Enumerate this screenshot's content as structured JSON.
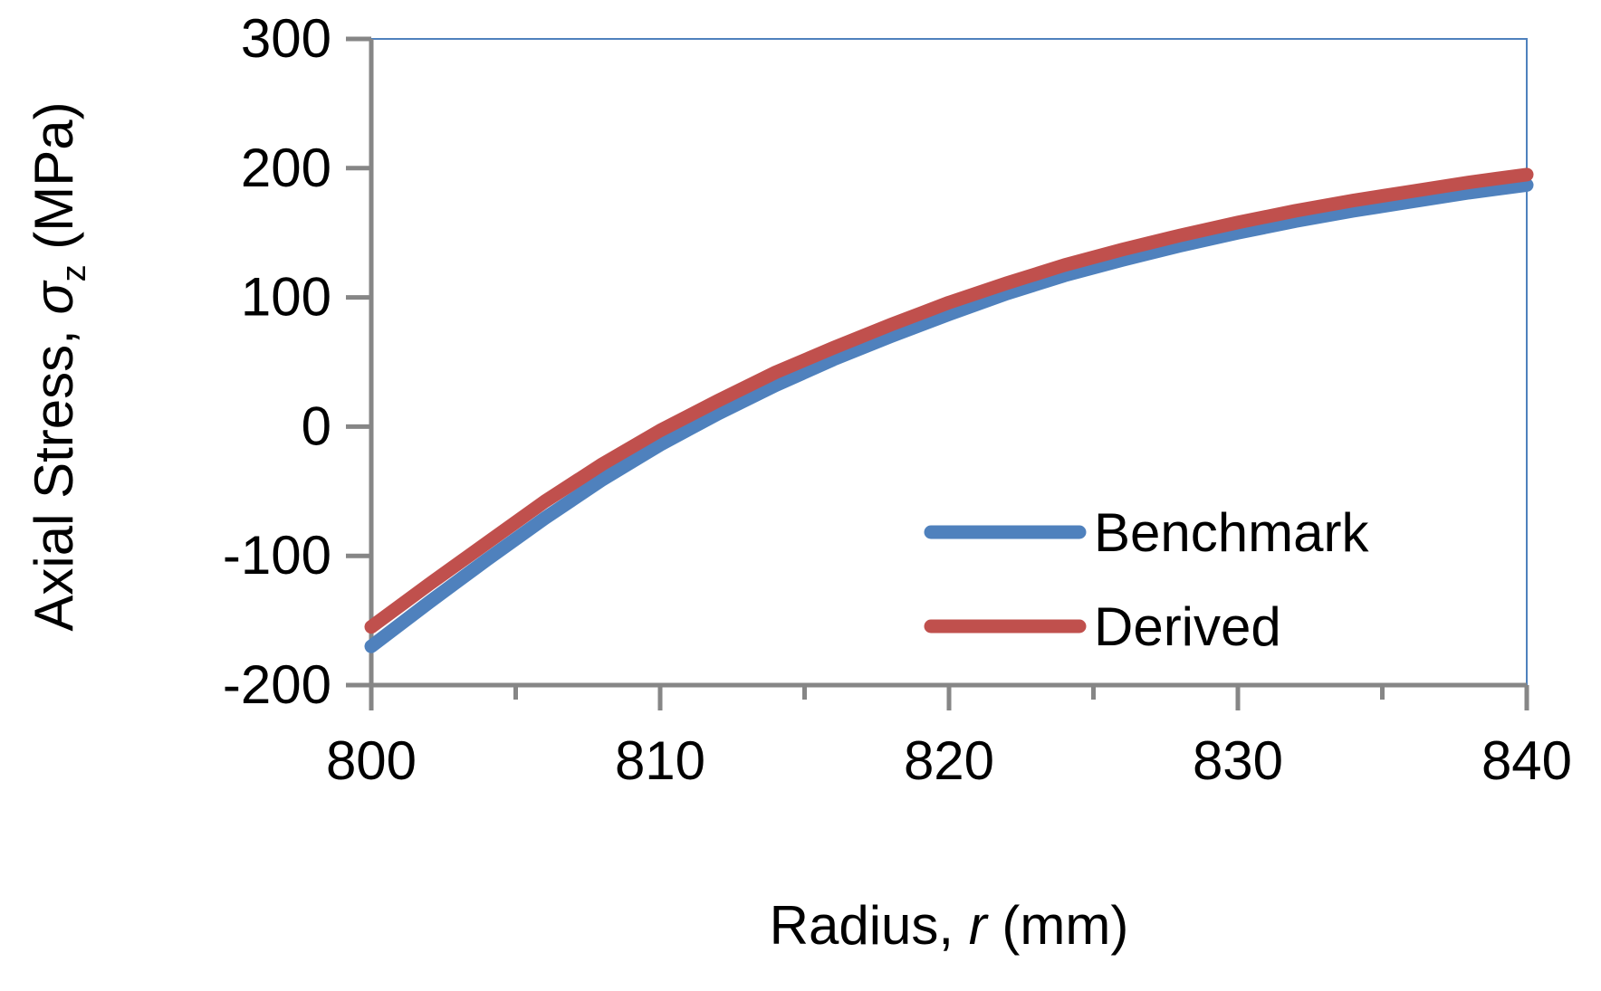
{
  "chart_data": {
    "type": "line",
    "title": "",
    "xlabel": {
      "text": "Radius, ",
      "symbol": "r",
      "unit": " (mm)"
    },
    "ylabel": {
      "text": "Axial Stress, ",
      "symbol": "σ",
      "subscript": "z",
      "unit": " (MPa)"
    },
    "xlim": [
      800,
      840
    ],
    "ylim": [
      -200,
      300
    ],
    "x_ticks": [
      "800",
      "810",
      "820",
      "830",
      "840"
    ],
    "y_ticks": [
      "300",
      "200",
      "100",
      "0",
      "-100",
      "-200"
    ],
    "grid": false,
    "legend_position": "bottom-right",
    "series": [
      {
        "name": "Benchmark",
        "color": "#4f81bd",
        "x": [
          800,
          802,
          804,
          806,
          808,
          810,
          812,
          814,
          816,
          818,
          820,
          822,
          824,
          826,
          828,
          830,
          832,
          834,
          836,
          838,
          840
        ],
        "y": [
          -170,
          -136,
          -103,
          -71,
          -41,
          -14,
          10,
          32,
          52,
          70,
          87,
          103,
          117,
          129,
          140,
          150,
          159,
          167,
          174,
          181,
          187
        ]
      },
      {
        "name": "Derived",
        "color": "#c0504d",
        "x": [
          800,
          802,
          804,
          806,
          808,
          810,
          812,
          814,
          816,
          818,
          820,
          822,
          824,
          826,
          828,
          830,
          832,
          834,
          836,
          838,
          840
        ],
        "y": [
          -155,
          -122,
          -90,
          -58,
          -29,
          -3,
          20,
          42,
          61,
          79,
          96,
          111,
          125,
          137,
          148,
          158,
          167,
          175,
          182,
          189,
          195
        ]
      }
    ]
  }
}
